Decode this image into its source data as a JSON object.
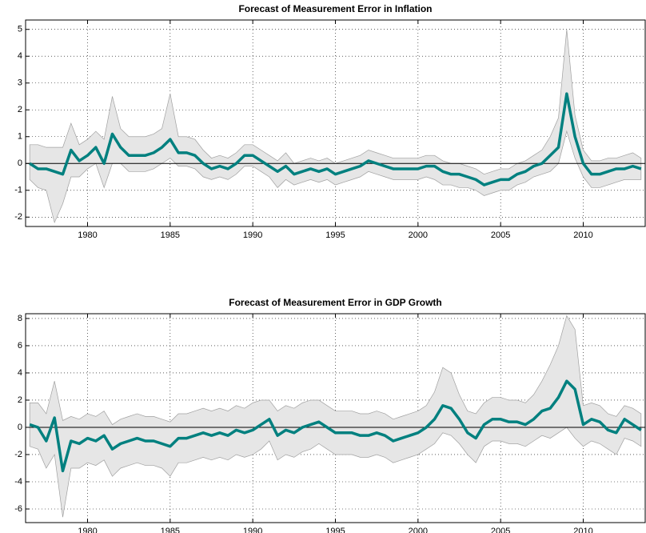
{
  "chart_data": [
    {
      "type": "line",
      "title": "Forecast of Measurement Error in Inflation",
      "x": [
        1976.5,
        1977,
        1977.5,
        1978,
        1978.5,
        1979,
        1979.5,
        1980,
        1980.5,
        1981,
        1981.5,
        1982,
        1982.5,
        1983,
        1983.5,
        1984,
        1984.5,
        1985,
        1985.5,
        1986,
        1986.5,
        1987,
        1987.5,
        1988,
        1988.5,
        1989,
        1989.5,
        1990,
        1990.5,
        1991,
        1991.5,
        1992,
        1992.5,
        1993,
        1993.5,
        1994,
        1994.5,
        1995,
        1995.5,
        1996,
        1996.5,
        1997,
        1997.5,
        1998,
        1998.5,
        1999,
        1999.5,
        2000,
        2000.5,
        2001,
        2001.5,
        2002,
        2002.5,
        2003,
        2003.5,
        2004,
        2004.5,
        2005,
        2005.5,
        2006,
        2006.5,
        2007,
        2007.5,
        2008,
        2008.5,
        2009,
        2009.5,
        2010,
        2010.5,
        2011,
        2011.5,
        2012,
        2012.5,
        2013,
        2013.5
      ],
      "series": [
        {
          "color": "#00807f",
          "values": [
            0.0,
            -0.2,
            -0.2,
            -0.3,
            -0.4,
            0.5,
            0.1,
            0.3,
            0.6,
            0.0,
            1.1,
            0.6,
            0.3,
            0.3,
            0.3,
            0.4,
            0.6,
            0.9,
            0.4,
            0.4,
            0.3,
            0.0,
            -0.2,
            -0.1,
            -0.2,
            0.0,
            0.3,
            0.3,
            0.1,
            -0.1,
            -0.3,
            -0.1,
            -0.4,
            -0.3,
            -0.2,
            -0.3,
            -0.2,
            -0.4,
            -0.3,
            -0.2,
            -0.1,
            0.1,
            0.0,
            -0.1,
            -0.2,
            -0.2,
            -0.2,
            -0.2,
            -0.1,
            -0.1,
            -0.3,
            -0.4,
            -0.4,
            -0.5,
            -0.6,
            -0.8,
            -0.7,
            -0.6,
            -0.6,
            -0.4,
            -0.3,
            -0.1,
            0.0,
            0.3,
            0.6,
            2.6,
            1.0,
            0.0,
            -0.4,
            -0.4,
            -0.3,
            -0.2,
            -0.2,
            -0.1,
            -0.2
          ]
        }
      ],
      "band": {
        "color": "#e6e6e6",
        "edge": "#a0a0a0",
        "upper": [
          0.7,
          0.7,
          0.6,
          0.6,
          0.6,
          1.5,
          0.7,
          0.9,
          1.2,
          0.9,
          2.5,
          1.3,
          1.0,
          1.0,
          1.0,
          1.1,
          1.3,
          2.6,
          1.0,
          1.0,
          0.9,
          0.5,
          0.2,
          0.3,
          0.2,
          0.4,
          0.7,
          0.7,
          0.5,
          0.3,
          0.1,
          0.4,
          0.0,
          0.1,
          0.2,
          0.1,
          0.2,
          0.0,
          0.1,
          0.2,
          0.3,
          0.5,
          0.4,
          0.3,
          0.2,
          0.2,
          0.2,
          0.2,
          0.3,
          0.3,
          0.1,
          0.0,
          0.0,
          -0.1,
          -0.2,
          -0.4,
          -0.3,
          -0.2,
          -0.2,
          0.0,
          0.1,
          0.3,
          0.5,
          1.0,
          1.7,
          5.0,
          1.8,
          0.5,
          0.1,
          0.1,
          0.2,
          0.2,
          0.3,
          0.4,
          0.2
        ],
        "lower": [
          -0.6,
          -0.9,
          -1.0,
          -2.2,
          -1.5,
          -0.5,
          -0.5,
          -0.2,
          0.0,
          -0.9,
          0.0,
          0.0,
          -0.3,
          -0.3,
          -0.3,
          -0.2,
          0.0,
          0.2,
          -0.1,
          -0.1,
          -0.2,
          -0.5,
          -0.6,
          -0.5,
          -0.6,
          -0.4,
          -0.1,
          -0.1,
          -0.3,
          -0.5,
          -0.9,
          -0.6,
          -0.8,
          -0.7,
          -0.6,
          -0.7,
          -0.6,
          -0.8,
          -0.7,
          -0.6,
          -0.5,
          -0.3,
          -0.4,
          -0.5,
          -0.6,
          -0.6,
          -0.6,
          -0.6,
          -0.5,
          -0.6,
          -0.8,
          -0.8,
          -0.9,
          -0.9,
          -1.0,
          -1.2,
          -1.1,
          -1.0,
          -1.0,
          -0.8,
          -0.7,
          -0.5,
          -0.4,
          -0.3,
          0.0,
          1.2,
          0.2,
          -0.5,
          -0.9,
          -0.9,
          -0.8,
          -0.7,
          -0.6,
          -0.6,
          -0.6
        ]
      },
      "reference_line": 0,
      "xlim": [
        1976.25,
        2013.75
      ],
      "xticks": [
        1980,
        1985,
        1990,
        1995,
        2000,
        2005,
        2010
      ],
      "ylim": [
        -2.35,
        5.35
      ],
      "yticks": [
        -2,
        -1,
        0,
        1,
        2,
        3,
        4,
        5
      ],
      "grid": true
    },
    {
      "type": "line",
      "title": "Forecast of Measurement Error in GDP Growth",
      "x": [
        1976.5,
        1977,
        1977.5,
        1978,
        1978.5,
        1979,
        1979.5,
        1980,
        1980.5,
        1981,
        1981.5,
        1982,
        1982.5,
        1983,
        1983.5,
        1984,
        1984.5,
        1985,
        1985.5,
        1986,
        1986.5,
        1987,
        1987.5,
        1988,
        1988.5,
        1989,
        1989.5,
        1990,
        1990.5,
        1991,
        1991.5,
        1992,
        1992.5,
        1993,
        1993.5,
        1994,
        1994.5,
        1995,
        1995.5,
        1996,
        1996.5,
        1997,
        1997.5,
        1998,
        1998.5,
        1999,
        1999.5,
        2000,
        2000.5,
        2001,
        2001.5,
        2002,
        2002.5,
        2003,
        2003.5,
        2004,
        2004.5,
        2005,
        2005.5,
        2006,
        2006.5,
        2007,
        2007.5,
        2008,
        2008.5,
        2009,
        2009.5,
        2010,
        2010.5,
        2011,
        2011.5,
        2012,
        2012.5,
        2013,
        2013.5
      ],
      "series": [
        {
          "color": "#00807f",
          "values": [
            0.2,
            0.0,
            -1.0,
            0.7,
            -3.2,
            -1.0,
            -1.2,
            -0.8,
            -1.0,
            -0.6,
            -1.6,
            -1.2,
            -1.0,
            -0.8,
            -1.0,
            -1.0,
            -1.2,
            -1.4,
            -0.8,
            -0.8,
            -0.6,
            -0.4,
            -0.6,
            -0.4,
            -0.6,
            -0.2,
            -0.4,
            -0.2,
            0.2,
            0.6,
            -0.6,
            -0.2,
            -0.4,
            0.0,
            0.2,
            0.4,
            0.0,
            -0.4,
            -0.4,
            -0.4,
            -0.6,
            -0.6,
            -0.4,
            -0.6,
            -1.0,
            -0.8,
            -0.6,
            -0.4,
            0.0,
            0.6,
            1.6,
            1.4,
            0.6,
            -0.4,
            -0.8,
            0.2,
            0.6,
            0.6,
            0.4,
            0.4,
            0.2,
            0.6,
            1.2,
            1.4,
            2.2,
            3.4,
            2.8,
            0.2,
            0.6,
            0.4,
            -0.2,
            -0.4,
            0.6,
            0.2,
            -0.2
          ]
        }
      ],
      "band": {
        "color": "#e6e6e6",
        "edge": "#a0a0a0",
        "upper": [
          1.8,
          1.8,
          1.0,
          3.4,
          0.5,
          0.8,
          0.6,
          1.0,
          0.8,
          1.2,
          0.2,
          0.6,
          0.8,
          1.0,
          0.8,
          0.8,
          0.6,
          0.4,
          1.0,
          1.0,
          1.2,
          1.4,
          1.2,
          1.4,
          1.2,
          1.6,
          1.4,
          1.8,
          2.0,
          2.0,
          1.2,
          1.6,
          1.4,
          1.8,
          2.0,
          2.0,
          1.6,
          1.2,
          1.2,
          1.2,
          1.0,
          1.0,
          1.2,
          1.0,
          0.6,
          0.8,
          1.0,
          1.2,
          1.6,
          2.6,
          4.4,
          4.0,
          2.4,
          1.2,
          1.0,
          1.8,
          2.2,
          2.2,
          2.0,
          2.0,
          1.8,
          2.4,
          3.4,
          4.6,
          6.0,
          8.2,
          7.2,
          1.6,
          1.8,
          1.6,
          1.0,
          0.8,
          1.6,
          1.4,
          1.0
        ],
        "lower": [
          -1.4,
          -1.6,
          -3.0,
          -2.0,
          -6.6,
          -3.0,
          -3.0,
          -2.6,
          -2.8,
          -2.4,
          -3.6,
          -3.0,
          -2.8,
          -2.6,
          -2.8,
          -2.8,
          -3.0,
          -3.6,
          -2.6,
          -2.6,
          -2.4,
          -2.2,
          -2.4,
          -2.2,
          -2.4,
          -2.0,
          -2.2,
          -2.0,
          -1.6,
          -1.0,
          -2.4,
          -2.0,
          -2.2,
          -1.8,
          -1.6,
          -1.2,
          -1.6,
          -2.0,
          -2.0,
          -2.0,
          -2.2,
          -2.2,
          -2.0,
          -2.2,
          -2.6,
          -2.4,
          -2.2,
          -2.0,
          -1.6,
          -1.2,
          -0.4,
          -0.6,
          -1.2,
          -2.0,
          -2.6,
          -1.4,
          -1.0,
          -1.0,
          -1.2,
          -1.2,
          -1.4,
          -1.0,
          -0.6,
          -0.8,
          -0.4,
          0.0,
          -0.8,
          -1.4,
          -1.0,
          -1.2,
          -1.6,
          -2.0,
          -0.8,
          -1.0,
          -1.4
        ]
      },
      "reference_line": 0,
      "xlim": [
        1976.25,
        2013.75
      ],
      "xticks": [
        1980,
        1985,
        1990,
        1995,
        2000,
        2005,
        2010
      ],
      "ylim": [
        -7,
        8.35
      ],
      "yticks": [
        -6,
        -4,
        -2,
        0,
        2,
        4,
        6,
        8
      ],
      "grid": true
    }
  ]
}
